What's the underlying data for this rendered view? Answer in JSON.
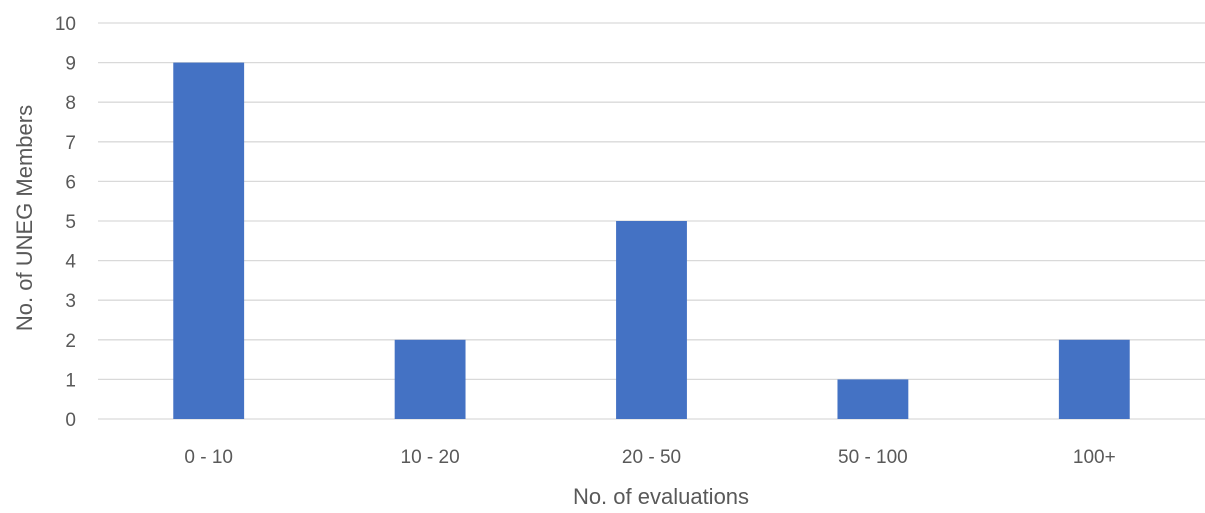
{
  "chart_data": {
    "type": "bar",
    "title": "",
    "xlabel": "No. of evaluations",
    "ylabel": "No. of UNEG Members",
    "categories": [
      "0 - 10",
      "10 - 20",
      "20 - 50",
      "50 - 100",
      "100+"
    ],
    "values": [
      9,
      2,
      5,
      1,
      2
    ],
    "ylim": [
      0,
      10
    ],
    "yticks": [
      0,
      1,
      2,
      3,
      4,
      5,
      6,
      7,
      8,
      9,
      10
    ],
    "grid": true,
    "legend": "none",
    "bar_color": "#4472c4"
  }
}
